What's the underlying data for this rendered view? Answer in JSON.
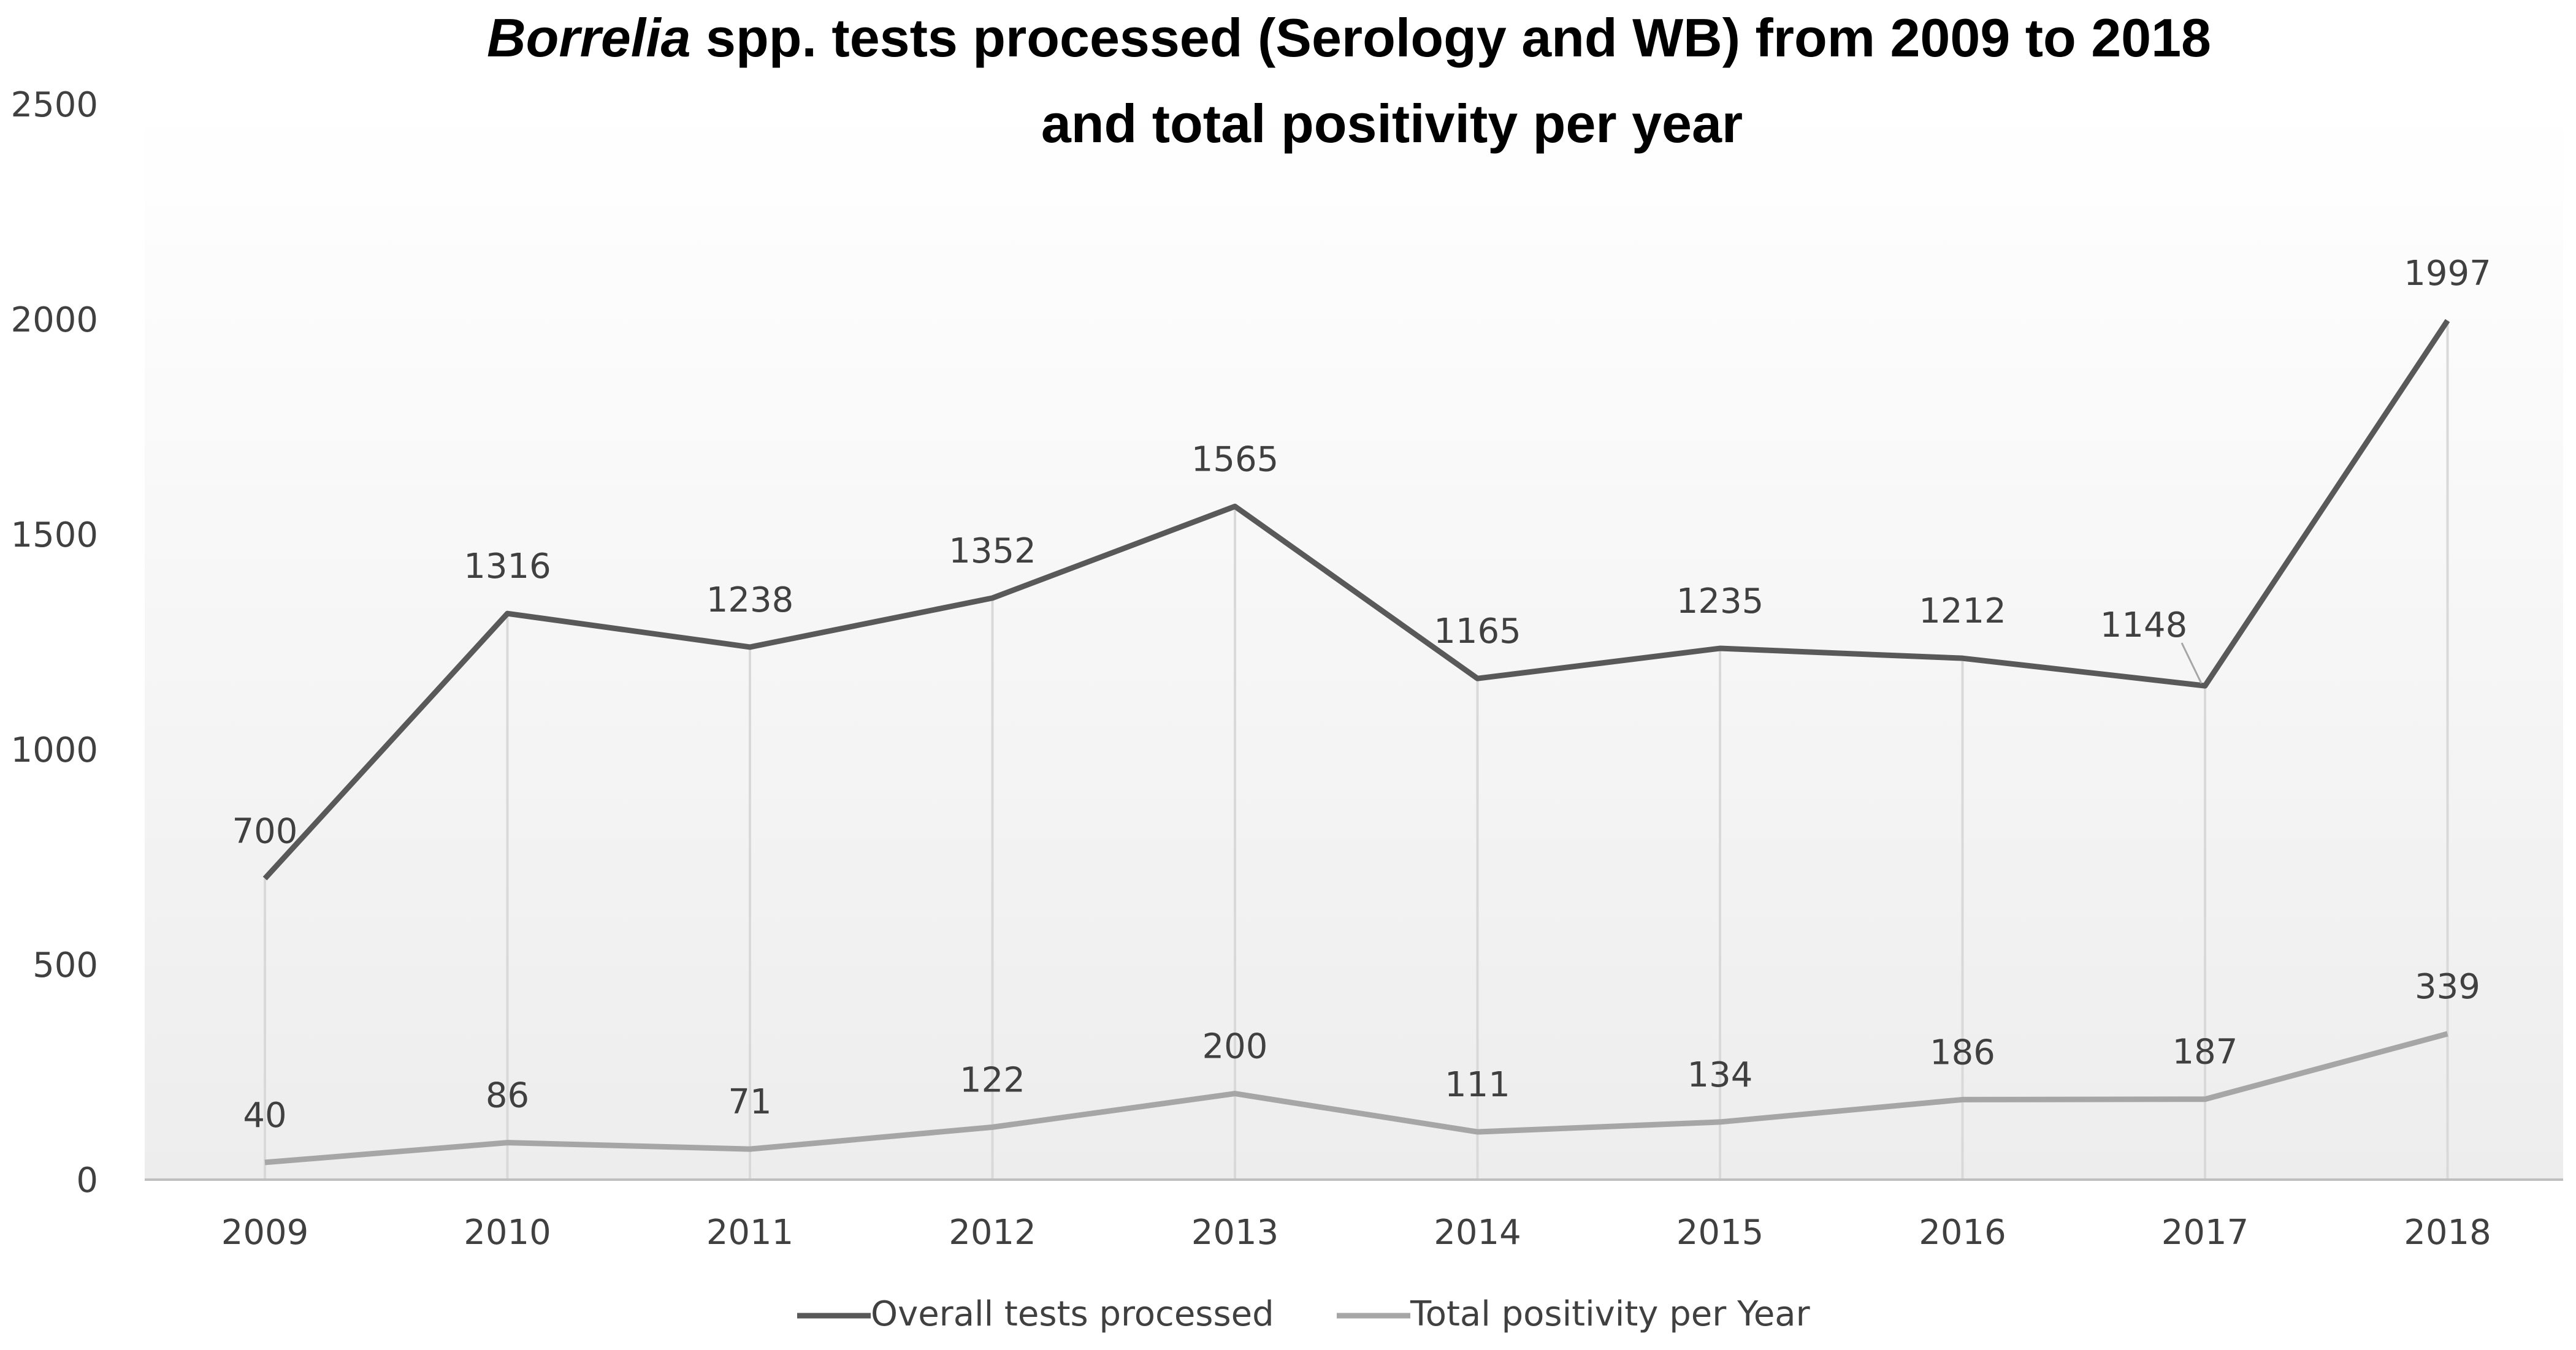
{
  "chart_data": {
    "type": "line",
    "title_line1_italic": "Borrelia",
    "title_line1_rest": " spp. tests processed (Serology and WB) from 2009 to 2018",
    "title_line2": "and total positivity per year",
    "categories": [
      "2009",
      "2010",
      "2011",
      "2012",
      "2013",
      "2014",
      "2015",
      "2016",
      "2017",
      "2018"
    ],
    "ylim": [
      0,
      2500
    ],
    "yticks": [
      0,
      500,
      1000,
      1500,
      2000,
      2500
    ],
    "grid": "vertical drop lines",
    "legend_position": "bottom",
    "series": [
      {
        "name": "Overall tests processed",
        "color": "#595959",
        "values": [
          700,
          1316,
          1238,
          1352,
          1565,
          1165,
          1235,
          1212,
          1148,
          1997
        ]
      },
      {
        "name": "Total positivity per Year",
        "color": "#a6a6a6",
        "values": [
          40,
          86,
          71,
          122,
          200,
          111,
          134,
          186,
          187,
          339
        ]
      }
    ]
  }
}
